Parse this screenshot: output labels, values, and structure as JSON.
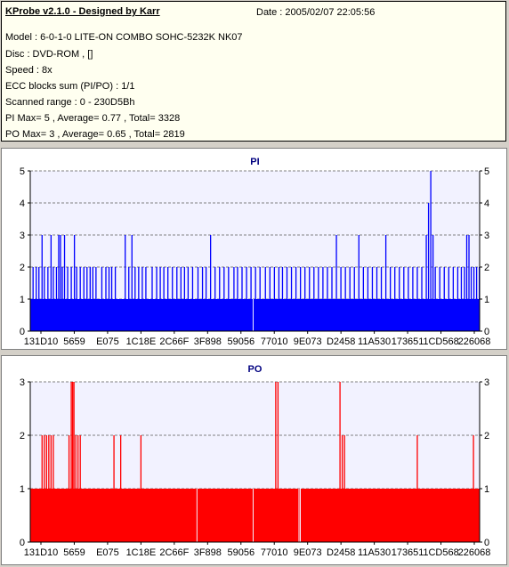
{
  "header": {
    "title": "KProbe v2.1.0 - Designed by Karr",
    "date": "Date : 2005/02/07 22:05:56",
    "lines": [
      "Model : 6-0-1-0 LITE-ON COMBO SOHC-5232K NK07",
      "Disc : DVD-ROM ,  []",
      "Speed : 8x",
      "ECC blocks sum (PI/PO) : 1/1",
      "Scanned range : 0 - 230D5Bh",
      "PI Max= 5 , Average= 0.77 , Total= 3328",
      "PO Max= 3 , Average= 0.65 , Total= 2819"
    ]
  },
  "colors": {
    "pi": "#0000ff",
    "po": "#ff0000",
    "grid": "#808080",
    "plot_bg": "#f2f2ff"
  },
  "chart_data": [
    {
      "type": "bar",
      "title": "PI",
      "x_tick_labels": [
        "131D10",
        "5659",
        "E075",
        "1C18E",
        "2C66F",
        "3F898",
        "59056",
        "77010",
        "9E073",
        "D2458",
        "11A530",
        "173651",
        "1CD568",
        "226068"
      ],
      "ylim": [
        0,
        5
      ],
      "y_ticks": [
        0,
        1,
        2,
        3,
        4,
        5
      ],
      "baseline": 1,
      "baseline_gaps": [
        0.495
      ],
      "spikes": [
        [
          0.005,
          2
        ],
        [
          0.012,
          2
        ],
        [
          0.018,
          2
        ],
        [
          0.025,
          3
        ],
        [
          0.03,
          2
        ],
        [
          0.038,
          2
        ],
        [
          0.045,
          3
        ],
        [
          0.05,
          2
        ],
        [
          0.057,
          2
        ],
        [
          0.062,
          3
        ],
        [
          0.066,
          3
        ],
        [
          0.07,
          2
        ],
        [
          0.075,
          3
        ],
        [
          0.082,
          2
        ],
        [
          0.09,
          2
        ],
        [
          0.097,
          3
        ],
        [
          0.102,
          2
        ],
        [
          0.11,
          2
        ],
        [
          0.118,
          2
        ],
        [
          0.125,
          2
        ],
        [
          0.132,
          2
        ],
        [
          0.138,
          2
        ],
        [
          0.145,
          2
        ],
        [
          0.158,
          2
        ],
        [
          0.167,
          2
        ],
        [
          0.174,
          2
        ],
        [
          0.18,
          2
        ],
        [
          0.188,
          2
        ],
        [
          0.21,
          3
        ],
        [
          0.218,
          2
        ],
        [
          0.225,
          3
        ],
        [
          0.232,
          2
        ],
        [
          0.24,
          2
        ],
        [
          0.248,
          2
        ],
        [
          0.256,
          2
        ],
        [
          0.27,
          2
        ],
        [
          0.28,
          2
        ],
        [
          0.288,
          2
        ],
        [
          0.296,
          2
        ],
        [
          0.305,
          2
        ],
        [
          0.315,
          2
        ],
        [
          0.325,
          2
        ],
        [
          0.334,
          2
        ],
        [
          0.342,
          2
        ],
        [
          0.35,
          2
        ],
        [
          0.36,
          2
        ],
        [
          0.372,
          2
        ],
        [
          0.382,
          2
        ],
        [
          0.39,
          2
        ],
        [
          0.4,
          3
        ],
        [
          0.41,
          2
        ],
        [
          0.42,
          2
        ],
        [
          0.43,
          2
        ],
        [
          0.44,
          2
        ],
        [
          0.452,
          2
        ],
        [
          0.46,
          2
        ],
        [
          0.47,
          2
        ],
        [
          0.48,
          2
        ],
        [
          0.49,
          2
        ],
        [
          0.5,
          2
        ],
        [
          0.51,
          2
        ],
        [
          0.522,
          2
        ],
        [
          0.532,
          2
        ],
        [
          0.542,
          2
        ],
        [
          0.552,
          2
        ],
        [
          0.56,
          2
        ],
        [
          0.57,
          2
        ],
        [
          0.58,
          2
        ],
        [
          0.59,
          2
        ],
        [
          0.6,
          2
        ],
        [
          0.61,
          2
        ],
        [
          0.62,
          2
        ],
        [
          0.63,
          2
        ],
        [
          0.64,
          2
        ],
        [
          0.65,
          2
        ],
        [
          0.66,
          2
        ],
        [
          0.67,
          2
        ],
        [
          0.68,
          3
        ],
        [
          0.69,
          2
        ],
        [
          0.7,
          2
        ],
        [
          0.71,
          2
        ],
        [
          0.72,
          2
        ],
        [
          0.73,
          3
        ],
        [
          0.74,
          2
        ],
        [
          0.75,
          2
        ],
        [
          0.76,
          2
        ],
        [
          0.77,
          2
        ],
        [
          0.78,
          2
        ],
        [
          0.79,
          3
        ],
        [
          0.8,
          2
        ],
        [
          0.81,
          2
        ],
        [
          0.82,
          2
        ],
        [
          0.83,
          2
        ],
        [
          0.84,
          2
        ],
        [
          0.85,
          2
        ],
        [
          0.86,
          2
        ],
        [
          0.87,
          2
        ],
        [
          0.88,
          3
        ],
        [
          0.885,
          4
        ],
        [
          0.89,
          5
        ],
        [
          0.895,
          3
        ],
        [
          0.9,
          2
        ],
        [
          0.91,
          2
        ],
        [
          0.92,
          2
        ],
        [
          0.93,
          2
        ],
        [
          0.94,
          2
        ],
        [
          0.95,
          2
        ],
        [
          0.958,
          2
        ],
        [
          0.965,
          2
        ],
        [
          0.97,
          3
        ],
        [
          0.975,
          3
        ],
        [
          0.98,
          2
        ],
        [
          0.986,
          2
        ],
        [
          0.992,
          2
        ],
        [
          0.998,
          2
        ]
      ]
    },
    {
      "type": "bar",
      "title": "PO",
      "x_tick_labels": [
        "131D10",
        "5659",
        "E075",
        "1C18E",
        "2C66F",
        "3F898",
        "59056",
        "77010",
        "9E073",
        "D2458",
        "11A530",
        "173651",
        "1CD568",
        "226068"
      ],
      "ylim": [
        0,
        3
      ],
      "y_ticks": [
        0,
        1,
        2,
        3
      ],
      "baseline": 1,
      "baseline_gaps": [
        0.37,
        0.495,
        0.597,
        0.6
      ],
      "spikes": [
        [
          0.025,
          2
        ],
        [
          0.03,
          2
        ],
        [
          0.035,
          2
        ],
        [
          0.04,
          2
        ],
        [
          0.045,
          2
        ],
        [
          0.05,
          2
        ],
        [
          0.085,
          2
        ],
        [
          0.09,
          3
        ],
        [
          0.093,
          3
        ],
        [
          0.096,
          3
        ],
        [
          0.1,
          2
        ],
        [
          0.105,
          2
        ],
        [
          0.11,
          2
        ],
        [
          0.185,
          2
        ],
        [
          0.245,
          2
        ],
        [
          0.2,
          2
        ],
        [
          0.545,
          3
        ],
        [
          0.55,
          3
        ],
        [
          0.688,
          3
        ],
        [
          0.693,
          2
        ],
        [
          0.698,
          2
        ],
        [
          0.86,
          2
        ],
        [
          0.985,
          2
        ]
      ]
    }
  ]
}
